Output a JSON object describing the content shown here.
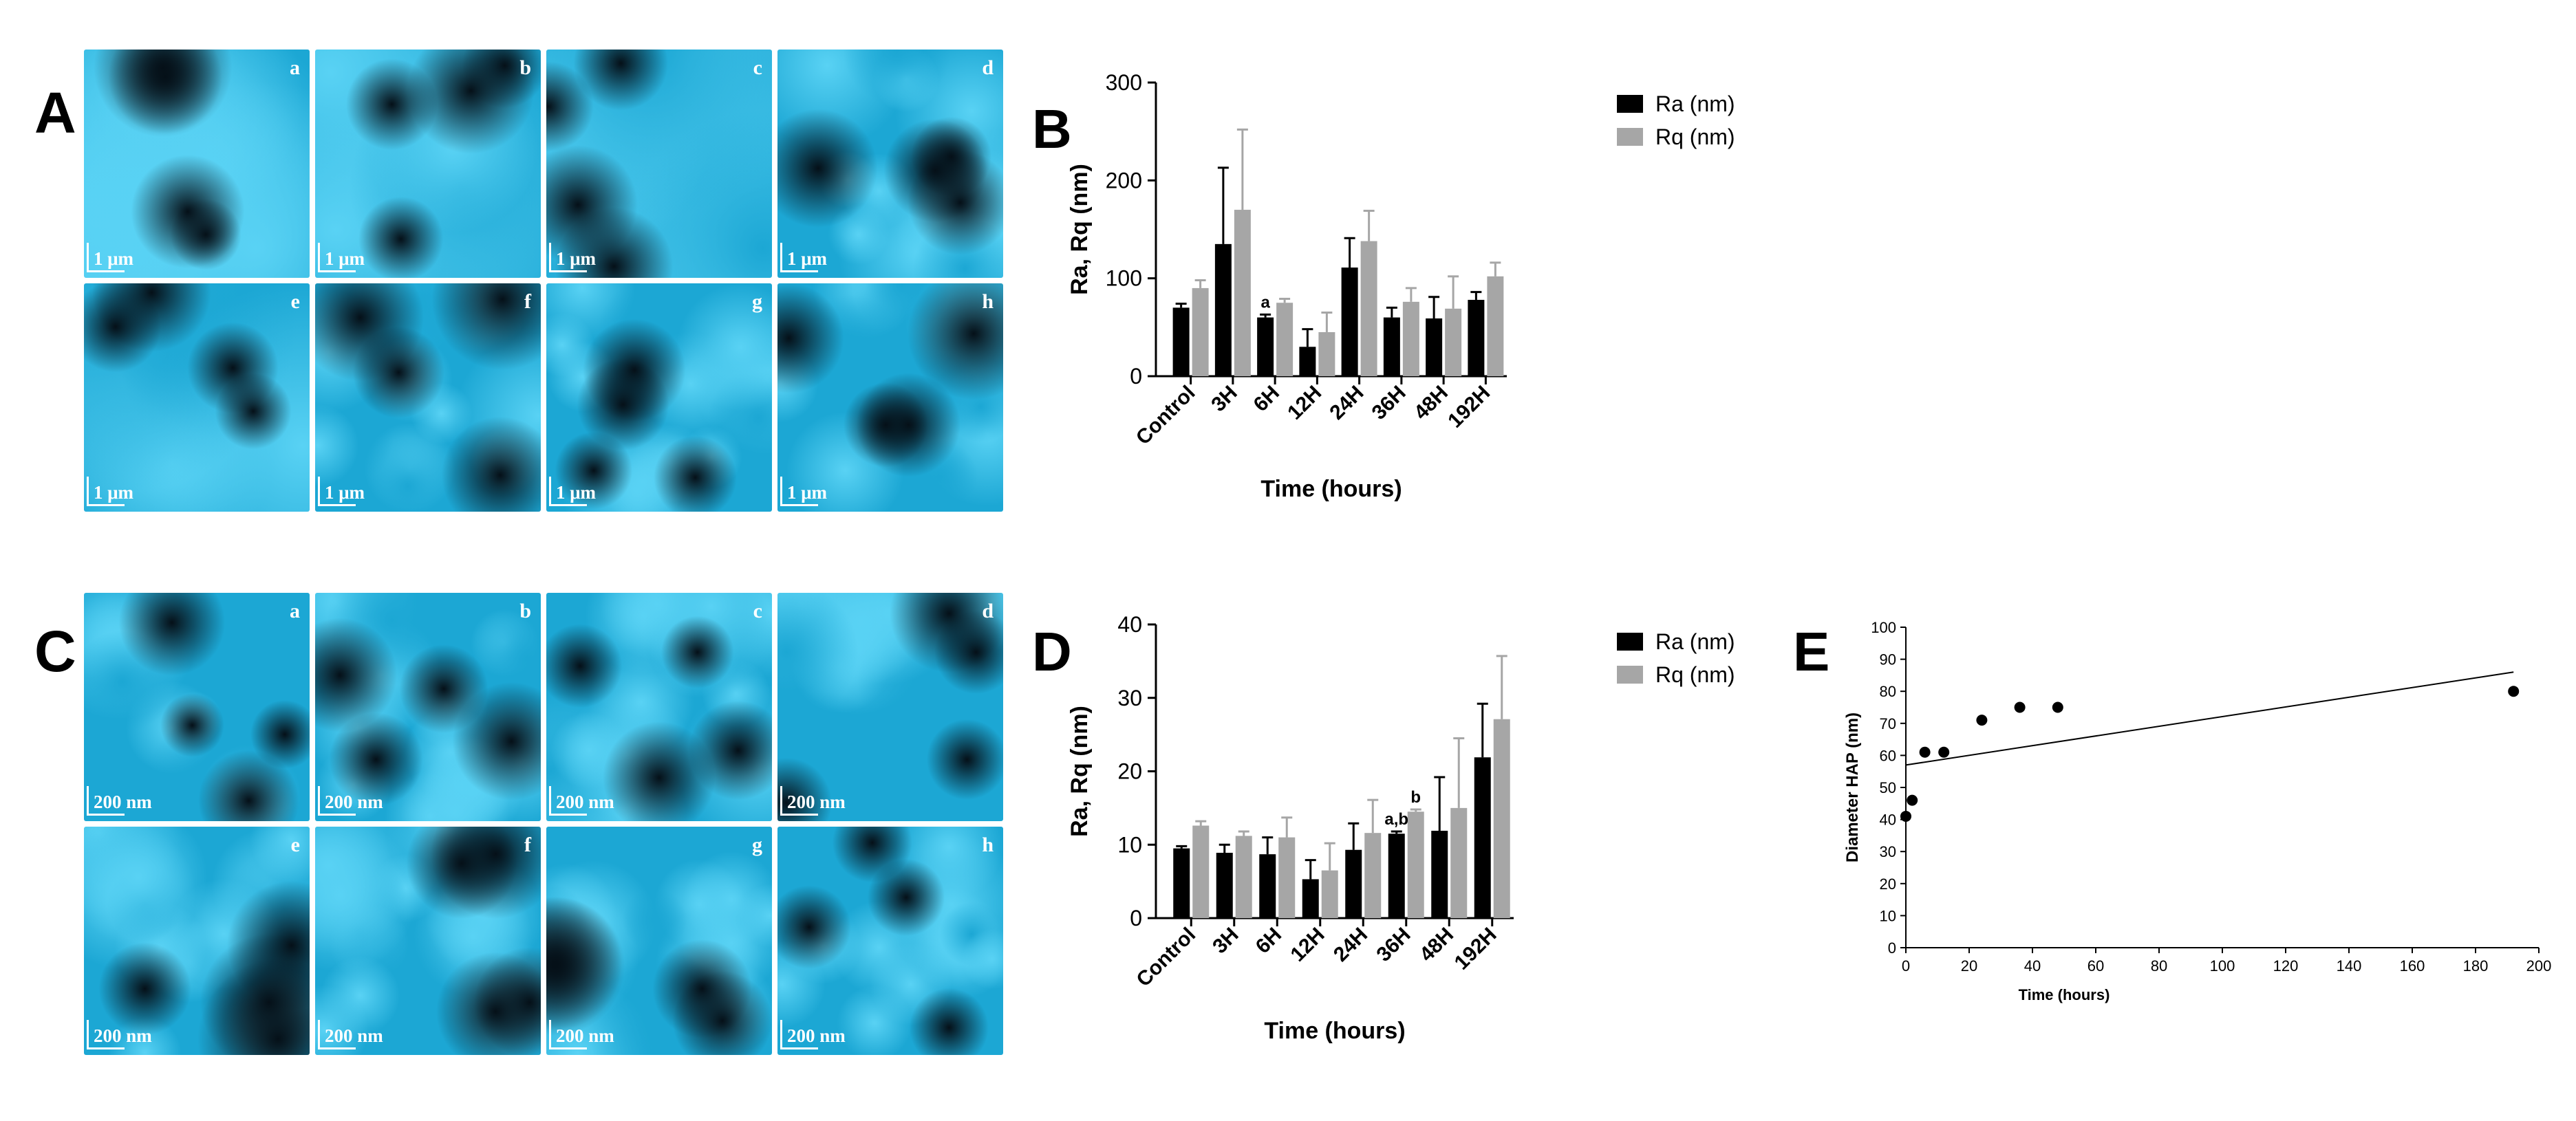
{
  "panels": {
    "A": {
      "letter": "A",
      "scale_label": "1 μm"
    },
    "B": {
      "letter": "B"
    },
    "C": {
      "letter": "C",
      "scale_label": "200 nm"
    },
    "D": {
      "letter": "D"
    },
    "E": {
      "letter": "E"
    }
  },
  "afm_tiles": [
    {
      "letter": "a",
      "variant": 1
    },
    {
      "letter": "b",
      "variant": 2
    },
    {
      "letter": "c",
      "variant": 3
    },
    {
      "letter": "d",
      "variant": 4
    },
    {
      "letter": "e",
      "variant": 5
    },
    {
      "letter": "f",
      "variant": 6
    },
    {
      "letter": "g",
      "variant": 7
    },
    {
      "letter": "h",
      "variant": 8
    }
  ],
  "colors": {
    "afm_base": "#1ca7d4",
    "afm_light": "#59d2f4",
    "afm_dark": "#051018",
    "ra_bar": "#000000",
    "rq_bar": "#a6a6a6"
  },
  "chart_data": [
    {
      "id": "B",
      "type": "bar",
      "title": "",
      "categories": [
        "Control",
        "3H",
        "6H",
        "12H",
        "24H",
        "36H",
        "48H",
        "192H"
      ],
      "series": [
        {
          "name": "Ra (nm)",
          "values": [
            70,
            135,
            60,
            30,
            111,
            60,
            59,
            78
          ],
          "errors": [
            4,
            78,
            3,
            18,
            30,
            10,
            22,
            8
          ]
        },
        {
          "name": "Rq (nm)",
          "values": [
            90,
            170,
            75,
            45,
            138,
            76,
            69,
            102
          ],
          "errors": [
            8,
            82,
            4,
            20,
            31,
            14,
            33,
            14
          ]
        }
      ],
      "annotations": [
        {
          "category": "6H",
          "series": "Ra (nm)",
          "text": "a"
        }
      ],
      "xlabel": "Time (hours)",
      "ylabel": "Ra, Rq (nm)",
      "yticks": [
        0,
        100,
        200,
        300
      ],
      "ylim": [
        0,
        300
      ],
      "legend": "top-right"
    },
    {
      "id": "D",
      "type": "bar",
      "title": "",
      "categories": [
        "Control",
        "3H",
        "6H",
        "12H",
        "24H",
        "36H",
        "48H",
        "192H"
      ],
      "series": [
        {
          "name": "Ra (nm)",
          "values": [
            9.5,
            8.9,
            8.7,
            5.3,
            9.3,
            11.5,
            11.9,
            21.9
          ],
          "errors": [
            0.3,
            1.1,
            2.3,
            2.6,
            3.6,
            0.3,
            7.3,
            7.3
          ]
        },
        {
          "name": "Rq (nm)",
          "values": [
            12.6,
            11.2,
            11,
            6.5,
            11.6,
            14.5,
            15,
            27.1
          ],
          "errors": [
            0.6,
            0.6,
            2.7,
            3.7,
            4.5,
            0.3,
            9.5,
            8.6
          ]
        }
      ],
      "annotations": [
        {
          "category": "36H",
          "series": "Ra (nm)",
          "text": "a,b"
        },
        {
          "category": "36H",
          "series": "Rq (nm)",
          "text": "b"
        }
      ],
      "xlabel": "Time (hours)",
      "ylabel": "Ra, Rq (nm)",
      "yticks": [
        0,
        10,
        20,
        30,
        40
      ],
      "ylim": [
        0,
        40
      ],
      "legend": "top-right"
    },
    {
      "id": "E",
      "type": "scatter",
      "title": "",
      "points": [
        {
          "x": 0,
          "y": 41
        },
        {
          "x": 2,
          "y": 46
        },
        {
          "x": 6,
          "y": 61
        },
        {
          "x": 12,
          "y": 61
        },
        {
          "x": 24,
          "y": 71
        },
        {
          "x": 36,
          "y": 75
        },
        {
          "x": 48,
          "y": 75
        },
        {
          "x": 192,
          "y": 80
        }
      ],
      "trendline": {
        "x": [
          0,
          192
        ],
        "y": [
          57,
          86
        ]
      },
      "xlabel": "Time (hours)",
      "ylabel": "Diameter HAP (nm)",
      "xticks": [
        0,
        20,
        40,
        60,
        80,
        100,
        120,
        140,
        160,
        180,
        200
      ],
      "yticks": [
        0,
        10,
        20,
        30,
        40,
        50,
        60,
        70,
        80,
        90,
        100
      ],
      "xlim": [
        0,
        200
      ],
      "ylim": [
        0,
        100
      ]
    }
  ]
}
